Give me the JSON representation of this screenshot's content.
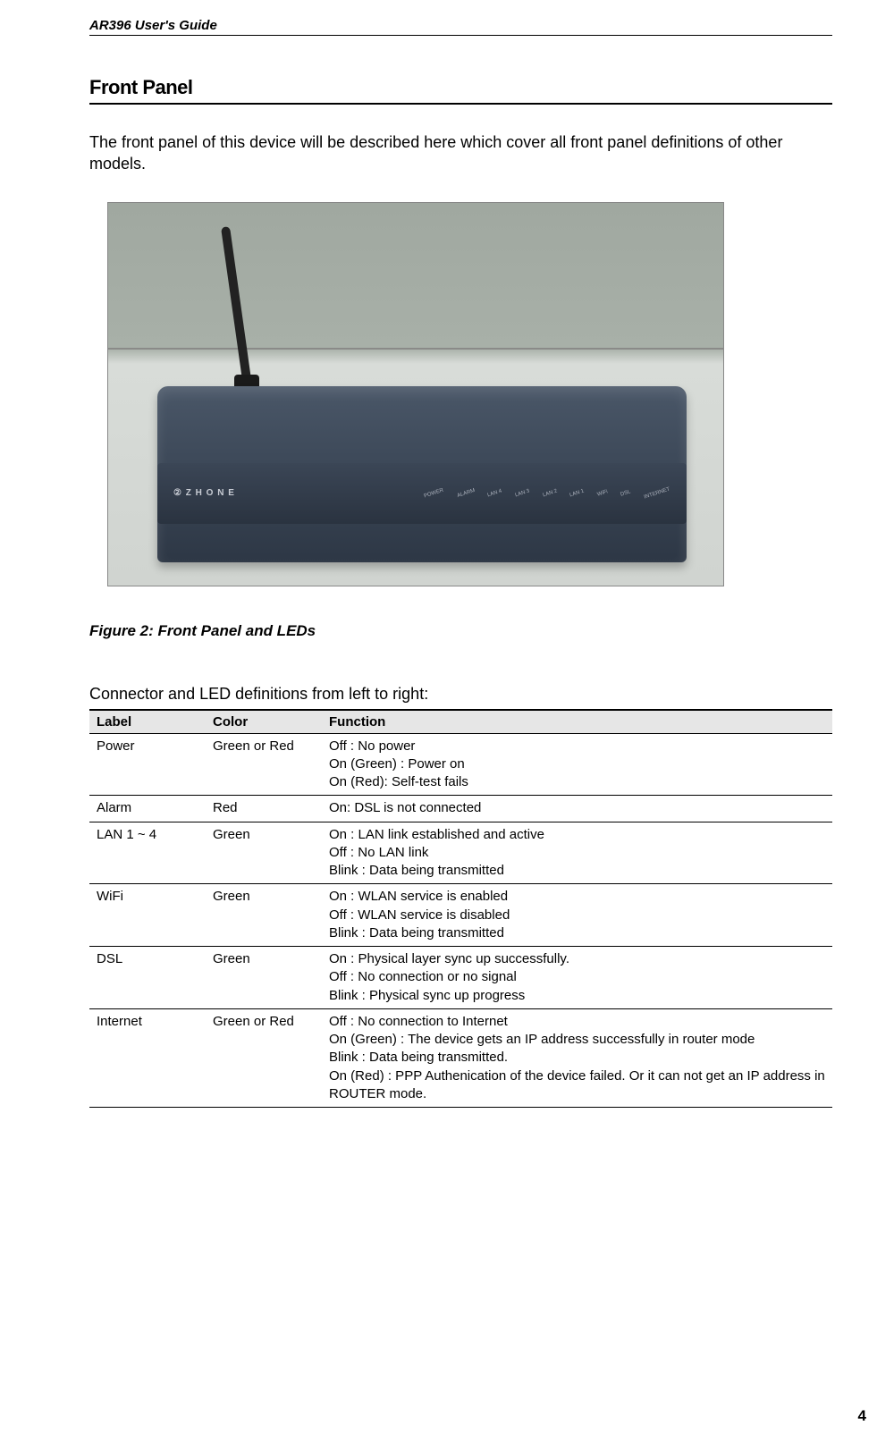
{
  "header": {
    "doc_title": "AR396 User's Guide"
  },
  "section": {
    "title": "Front Panel",
    "intro": "The front panel of this device will be described here which cover all front panel definitions of other models."
  },
  "figure": {
    "caption": "Figure 2: Front Panel and LEDs",
    "brand": "② Z H O N E",
    "leds": [
      "POWER",
      "ALARM",
      "LAN 4",
      "LAN 3",
      "LAN 2",
      "LAN 1",
      "WiFi",
      "DSL",
      "INTERNET"
    ]
  },
  "table": {
    "intro": "Connector and LED definitions from left to right:",
    "columns": [
      "Label",
      "Color",
      "Function"
    ],
    "rows": [
      {
        "label": "Power",
        "color": "Green or Red",
        "function": "Off : No power\nOn (Green) : Power on\nOn (Red): Self-test fails"
      },
      {
        "label": "Alarm",
        "color": "Red",
        "function": "On: DSL is not connected"
      },
      {
        "label": "LAN 1 ~ 4",
        "color": "Green",
        "function": "On : LAN link established and active\nOff : No LAN link\nBlink : Data being transmitted"
      },
      {
        "label": "WiFi",
        "color": "Green",
        "function": "On : WLAN service is enabled\nOff : WLAN service is disabled\nBlink : Data being transmitted"
      },
      {
        "label": "DSL",
        "color": "Green",
        "function": "On : Physical layer sync up successfully.\nOff : No connection or no signal\nBlink : Physical sync up progress"
      },
      {
        "label": "Internet",
        "color": "Green or Red",
        "function": "Off : No connection to Internet\nOn (Green) : The device gets an IP address successfully in router mode\nBlink : Data being transmitted.\nOn (Red) : PPP Authenication of the device failed. Or it can not get an IP address in ROUTER mode."
      }
    ]
  },
  "page_number": "4",
  "style": {
    "colors": {
      "text": "#000000",
      "header_bg": "#e6e6e6",
      "rule": "#000000",
      "router_body_top": "#4a5768",
      "router_body_bottom": "#2d3745",
      "bg_upper": "#a0a8a0",
      "bg_lower": "#d0d4d0"
    },
    "fonts": {
      "body_pt": 14,
      "section_title_pt": 17,
      "caption_pt": 13
    }
  }
}
